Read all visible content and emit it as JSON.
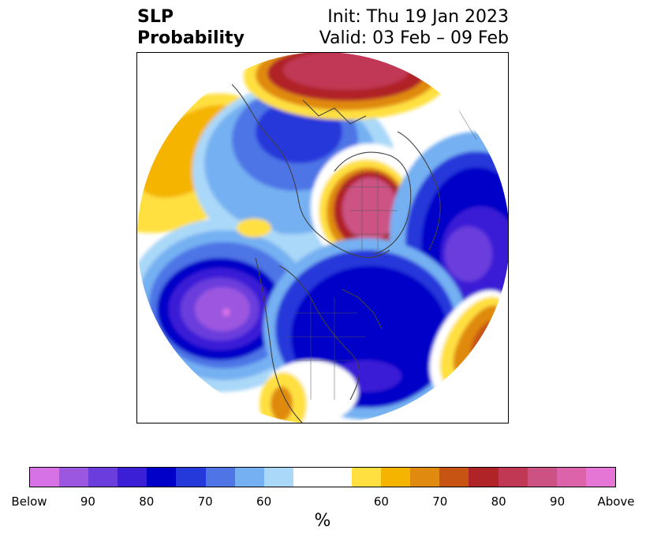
{
  "title": {
    "left_line1": "SLP",
    "left_line2": "Probability",
    "right_line1": "Init: Thu 19 Jan 2023",
    "right_line2": "Valid: 03 Feb – 09 Feb"
  },
  "colorbar": {
    "unit_label": "%",
    "colors": [
      "#d671e6",
      "#9c57e0",
      "#6b3ddc",
      "#3b1fd6",
      "#0000c8",
      "#2538da",
      "#4e74e6",
      "#74b0f2",
      "#aad8f8",
      "#ffffff",
      "#ffffff",
      "#ffe040",
      "#f4b400",
      "#e08a10",
      "#c85414",
      "#b02428",
      "#c03854",
      "#cc5284",
      "#dc62aa",
      "#e676d6"
    ],
    "ticks": [
      {
        "label": "Below",
        "index": 0
      },
      {
        "label": "90",
        "index": 2
      },
      {
        "label": "80",
        "index": 4
      },
      {
        "label": "70",
        "index": 6
      },
      {
        "label": "60",
        "index": 8
      },
      {
        "label": "60",
        "index": 12
      },
      {
        "label": "70",
        "index": 14
      },
      {
        "label": "80",
        "index": 16
      },
      {
        "label": "90",
        "index": 18
      },
      {
        "label": "Above",
        "index": 20
      }
    ]
  }
}
